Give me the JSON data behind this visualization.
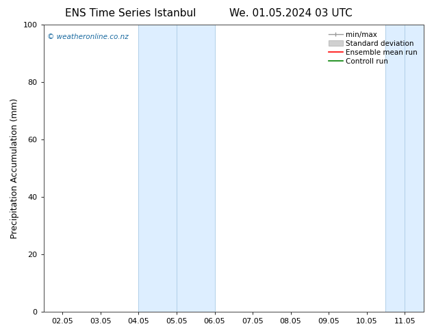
{
  "title_left": "ENS Time Series Istanbul",
  "title_right": "We. 01.05.2024 03 UTC",
  "ylabel": "Precipitation Accumulation (mm)",
  "watermark": "© weatheronline.co.nz",
  "xlim_min": 1.5,
  "xlim_max": 11.5,
  "ylim": [
    0,
    100
  ],
  "yticks": [
    0,
    20,
    40,
    60,
    80,
    100
  ],
  "xtick_labels": [
    "02.05",
    "03.05",
    "04.05",
    "05.05",
    "06.05",
    "07.05",
    "08.05",
    "09.05",
    "10.05",
    "11.05"
  ],
  "xtick_positions": [
    2,
    3,
    4,
    5,
    6,
    7,
    8,
    9,
    10,
    11
  ],
  "shaded_regions": [
    {
      "xmin": 4.0,
      "xmax": 6.0,
      "color": "#ddeeff"
    },
    {
      "xmin": 10.5,
      "xmax": 12.0,
      "color": "#ddeeff"
    }
  ],
  "shade_dividers": [
    {
      "x": 4.0,
      "color": "#b0cfe8"
    },
    {
      "x": 5.0,
      "color": "#b0cfe8"
    },
    {
      "x": 6.0,
      "color": "#b0cfe8"
    },
    {
      "x": 10.5,
      "color": "#b0cfe8"
    },
    {
      "x": 11.0,
      "color": "#b0cfe8"
    }
  ],
  "legend_entries": [
    {
      "label": "min/max",
      "type": "minmax"
    },
    {
      "label": "Standard deviation",
      "type": "stddev"
    },
    {
      "label": "Ensemble mean run",
      "type": "line",
      "color": "red"
    },
    {
      "label": "Controll run",
      "type": "line",
      "color": "green"
    }
  ],
  "background_color": "#ffffff",
  "watermark_color": "#1a6aa0",
  "title_fontsize": 11,
  "axis_label_fontsize": 9,
  "tick_fontsize": 8,
  "legend_fontsize": 7.5
}
